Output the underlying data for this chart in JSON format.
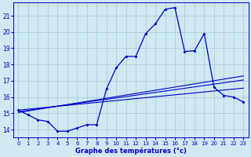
{
  "xlabel": "Graphe des températures (°c)",
  "bg_color": "#cfe9f2",
  "grid_color": "#aaccdd",
  "line_color": "#0000cc",
  "xlim": [
    -0.5,
    23.5
  ],
  "ylim": [
    13.5,
    21.8
  ],
  "yticks": [
    14,
    15,
    16,
    17,
    18,
    19,
    20,
    21
  ],
  "xticks": [
    0,
    1,
    2,
    3,
    4,
    5,
    6,
    7,
    8,
    9,
    10,
    11,
    12,
    13,
    14,
    15,
    16,
    17,
    18,
    19,
    20,
    21,
    22,
    23
  ],
  "main_x": [
    0,
    1,
    2,
    3,
    4,
    5,
    6,
    7,
    8,
    9,
    10,
    11,
    12,
    13,
    14,
    15,
    16,
    17,
    18,
    19,
    20,
    21,
    22,
    23
  ],
  "main_y": [
    15.2,
    14.9,
    14.6,
    14.5,
    13.9,
    13.9,
    14.1,
    14.3,
    14.3,
    16.5,
    17.8,
    18.5,
    18.5,
    19.9,
    20.5,
    21.4,
    21.5,
    18.8,
    18.85,
    19.9,
    16.6,
    16.1,
    16.0,
    15.7
  ],
  "trend1_x": [
    0,
    23
  ],
  "trend1_y": [
    15.2,
    16.55
  ],
  "trend2_x": [
    0,
    23
  ],
  "trend2_y": [
    15.1,
    17.05
  ],
  "trend3_x": [
    0,
    23
  ],
  "trend3_y": [
    15.05,
    17.3
  ]
}
